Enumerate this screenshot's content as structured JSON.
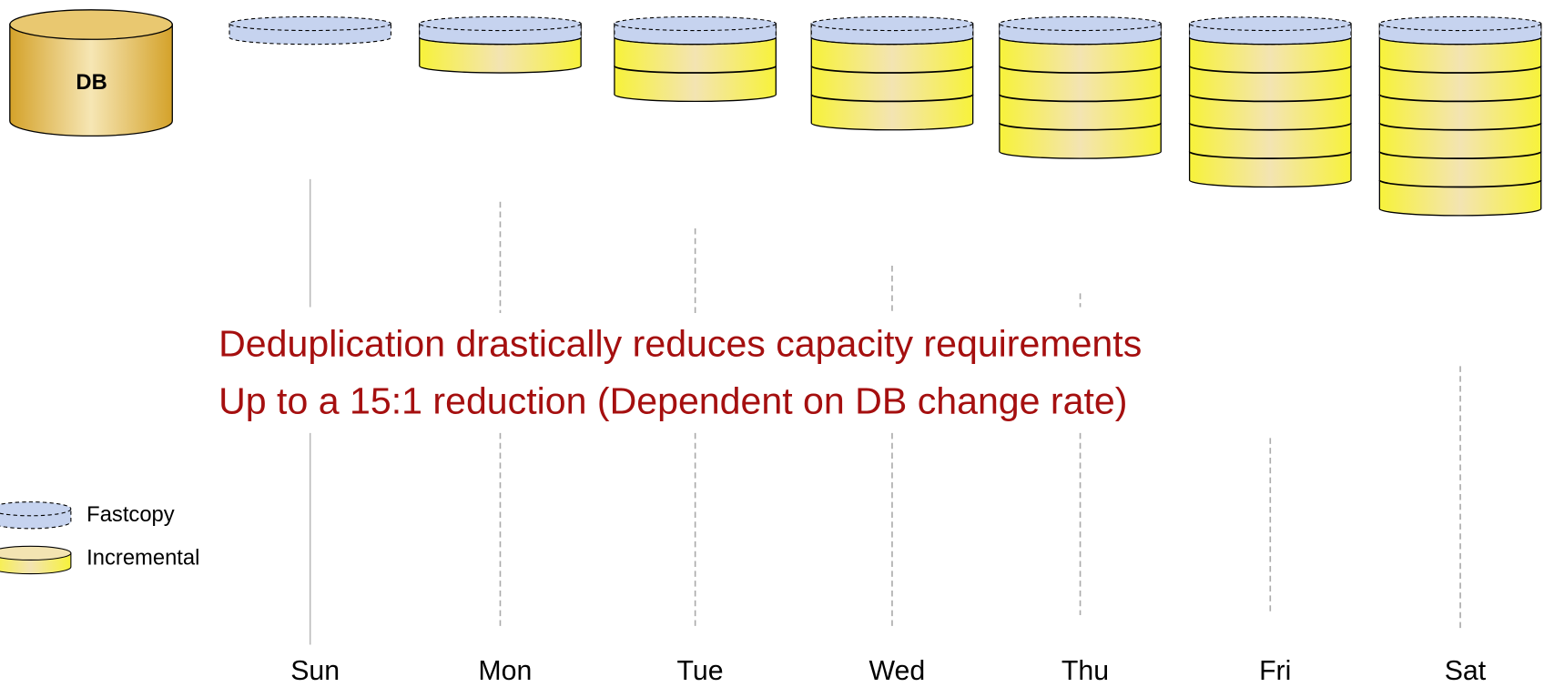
{
  "db_label": "DB",
  "days": [
    "Sun",
    "Mon",
    "Tue",
    "Wed",
    "Thu",
    "Fri",
    "Sat"
  ],
  "bullets": [
    "Deduplication drastically reduces capacity requirements",
    "Up to a 15:1 reduction (Dependent on DB change rate)"
  ],
  "legend": {
    "fastcopy": "Fastcopy",
    "incremental": "Incremental"
  }
}
